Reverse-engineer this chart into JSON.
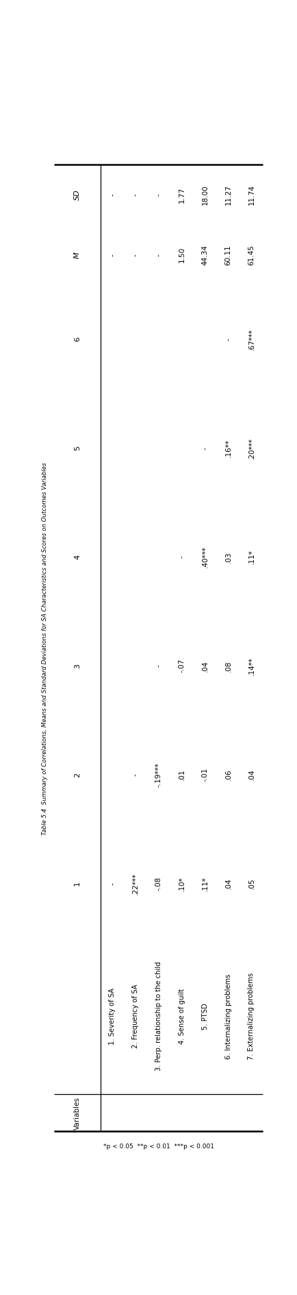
{
  "title": "Table 5.4  Summary of Correlations, Means and Standard Deviations for SA Characteristics and Scores on Outcomes Variables",
  "col_headers": [
    "Variables",
    "1",
    "2",
    "3",
    "4",
    "5",
    "6",
    "M",
    "SD"
  ],
  "row_labels": [
    "1. Severity of SA",
    "2. Frequency of SA",
    "3. Perp. relationship to the child",
    "4. Sense of guilt",
    "5. PTSD",
    "6. Internalizing problems",
    "7. Externalizing problems"
  ],
  "corr_data": [
    {
      "1": "-",
      "2": "",
      "3": "",
      "4": "",
      "5": "",
      "6": "",
      "M": "-",
      "SD": "-"
    },
    {
      "1": ".22***",
      "2": "-",
      "3": "",
      "4": "",
      "5": "",
      "6": "",
      "M": "-",
      "SD": "-"
    },
    {
      "1": "-.08",
      "2": "-.19***",
      "3": "-",
      "4": "",
      "5": "",
      "6": "",
      "M": "-",
      "SD": "-"
    },
    {
      "1": ".10*",
      "2": ".01",
      "3": "-.07",
      "4": "-",
      "5": "",
      "6": "",
      "M": "1.50",
      "SD": "1.77"
    },
    {
      "1": ".11*",
      "2": "-.01",
      "3": ".04",
      "4": ".40***",
      "5": "-",
      "6": "",
      "M": "44.34",
      "SD": "18.00"
    },
    {
      "1": ".04",
      "2": ".06",
      "3": ".08",
      "4": ".03",
      "5": ".16**",
      "6": "-",
      "M": "60.11",
      "SD": "11.27"
    },
    {
      "1": ".05",
      "2": ".04",
      "3": ".14**",
      "4": ".11*",
      "5": ".20***",
      "6": ".67***",
      "M": "61.45",
      "SD": "11.74"
    }
  ],
  "footnote": "*p < 0.05  **p < 0.01  ***p < 0.001",
  "bg_color": "#ffffff",
  "text_color": "#000000",
  "fig_width": 4.34,
  "fig_height": 18.9,
  "dpi": 100
}
